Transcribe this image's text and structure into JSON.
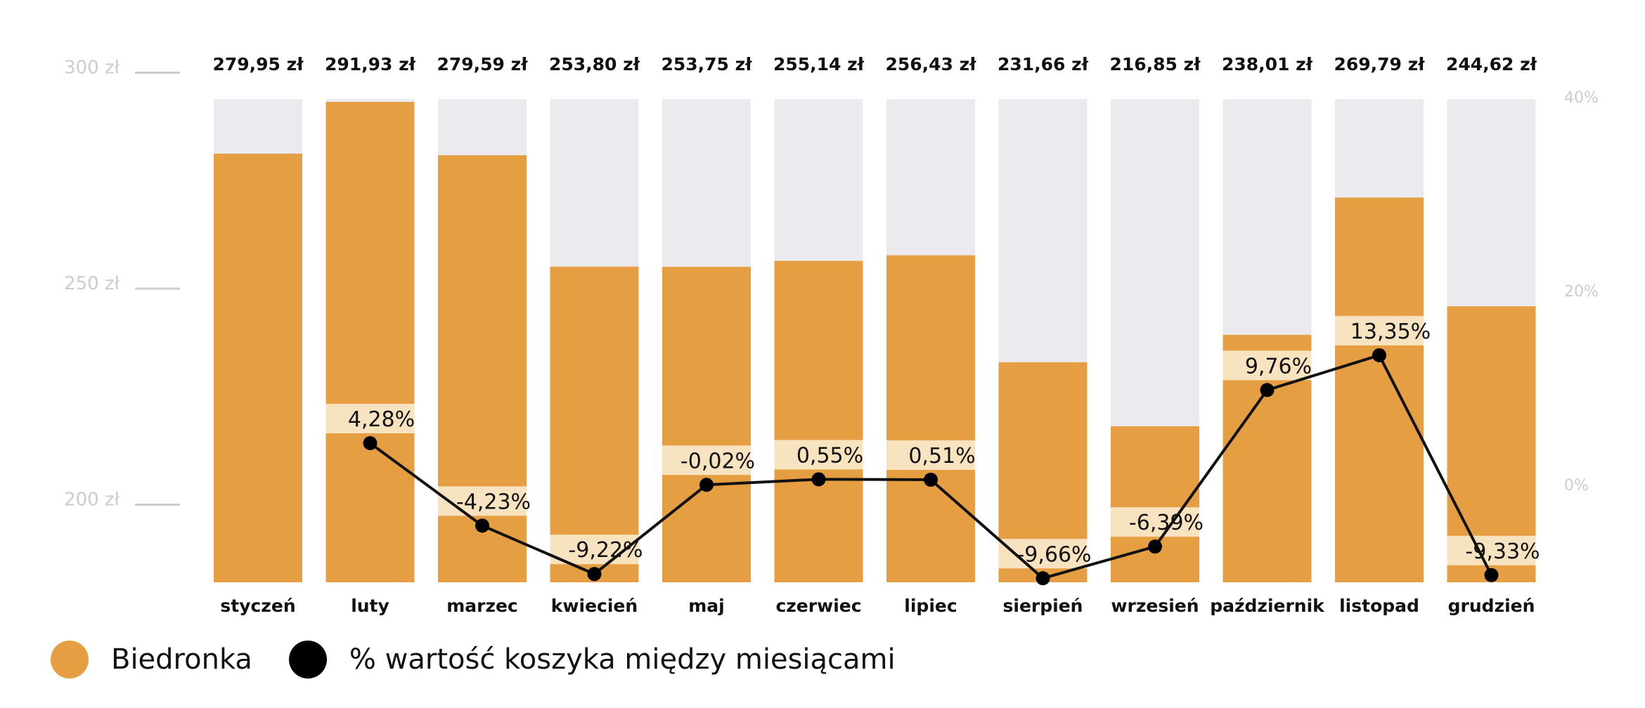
{
  "chart_data": {
    "type": "bar",
    "categories": [
      "styczeń",
      "luty",
      "marzec",
      "kwiecień",
      "maj",
      "czerwiec",
      "lipiec",
      "sierpień",
      "wrzesień",
      "październik",
      "listopad",
      "grudzień"
    ],
    "series": [
      {
        "name": "Biedronka",
        "type": "bar",
        "axis": "left",
        "values": [
          279.95,
          291.93,
          279.59,
          253.8,
          253.75,
          255.14,
          256.43,
          231.66,
          216.85,
          238.01,
          269.79,
          244.62
        ],
        "labels": [
          "279,95 zł",
          "291,93 zł",
          "279,59 zł",
          "253,80 zł",
          "253,75 zł",
          "255,14 zł",
          "256,43 zł",
          "231,66 zł",
          "216,85 zł",
          "238,01 zł",
          "269,79 zł",
          "244,62 zł"
        ]
      },
      {
        "name": "% wartość koszyka między miesiącami",
        "type": "line",
        "axis": "right",
        "values": [
          null,
          4.28,
          -4.23,
          -9.22,
          -0.02,
          0.55,
          0.51,
          -9.66,
          -6.39,
          9.76,
          13.35,
          -9.33
        ],
        "labels": [
          "",
          "4,28%",
          "-4,23%",
          "-9,22%",
          "-0,02%",
          "0,55%",
          "0,51%",
          "-9,66%",
          "-6,39%",
          "9,76%",
          "13,35%",
          "-9,33%"
        ]
      }
    ],
    "y_left": {
      "ticks": [
        200,
        250,
        300
      ],
      "tick_labels": [
        "200 zł",
        "250 zł",
        "300 zł"
      ]
    },
    "y_right": {
      "ticks": [
        0,
        20,
        40
      ],
      "tick_labels": [
        "0%",
        "20%",
        "40%"
      ]
    },
    "legend_position": "bottom-left",
    "colors": {
      "bar": "#e69e42",
      "bar_background": "#ebeaee",
      "line": "#111111",
      "pct_label_bg": "#f8e3c0",
      "tick": "#cccccc"
    }
  }
}
